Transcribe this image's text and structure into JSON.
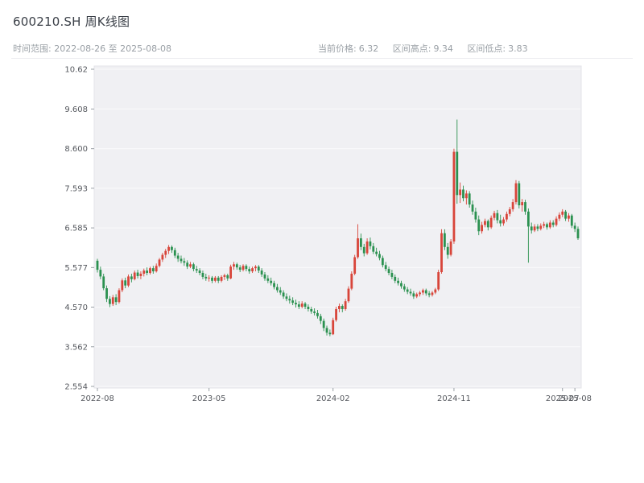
{
  "header": {
    "title": "600210.SH 周K线图",
    "time_range_text": "时间范围: 2022-08-26 至 2025-08-08",
    "stats": [
      {
        "label": "当前价格:",
        "value": "6.32"
      },
      {
        "label": "区间高点:",
        "value": "9.34"
      },
      {
        "label": "区间低点:",
        "value": "3.83"
      }
    ]
  },
  "chart_data": {
    "type": "candlestick",
    "title": "600210.SH 周K线图",
    "frequency": "weekly",
    "start_date": "2022-08-26",
    "end_date": "2025-08-08",
    "current_price": 6.32,
    "range_high": 9.34,
    "range_low": 3.83,
    "up_color": "#d8453a",
    "down_color": "#2b9150",
    "plot_bg": "#f0f0f3",
    "plot_border": "#e3e3e8",
    "grid_color": "#fafafb",
    "axis_text_color": "#55585e",
    "y_axis": {
      "range": [
        2.554,
        10.62
      ],
      "tick_values": [
        10.62,
        9.608,
        8.6,
        7.593,
        6.585,
        5.577,
        4.57,
        3.562,
        2.554
      ],
      "tick_labels": [
        "10.62",
        "9.608",
        "8.600",
        "7.593",
        "6.585",
        "5.577",
        "4.570",
        "3.562",
        "2.554"
      ]
    },
    "x_axis": {
      "tick_indices": [
        0,
        36,
        76,
        115,
        150,
        154
      ],
      "tick_labels": [
        "2022-08",
        "2023-05",
        "2024-02",
        "2024-11",
        "2025-07",
        "2025-08"
      ]
    },
    "candles": [
      [
        5.75,
        5.8,
        5.45,
        5.52
      ],
      [
        5.52,
        5.6,
        5.28,
        5.35
      ],
      [
        5.35,
        5.42,
        5.0,
        5.05
      ],
      [
        5.05,
        5.12,
        4.7,
        4.78
      ],
      [
        4.78,
        4.85,
        4.57,
        4.65
      ],
      [
        4.65,
        4.88,
        4.6,
        4.82
      ],
      [
        4.82,
        4.9,
        4.62,
        4.7
      ],
      [
        4.7,
        5.05,
        4.66,
        5.0
      ],
      [
        5.0,
        5.3,
        4.95,
        5.25
      ],
      [
        5.25,
        5.32,
        5.05,
        5.12
      ],
      [
        5.12,
        5.4,
        5.08,
        5.35
      ],
      [
        5.35,
        5.42,
        5.2,
        5.28
      ],
      [
        5.28,
        5.5,
        5.25,
        5.45
      ],
      [
        5.45,
        5.52,
        5.3,
        5.36
      ],
      [
        5.36,
        5.48,
        5.28,
        5.42
      ],
      [
        5.42,
        5.55,
        5.35,
        5.5
      ],
      [
        5.5,
        5.58,
        5.38,
        5.44
      ],
      [
        5.44,
        5.6,
        5.4,
        5.56
      ],
      [
        5.56,
        5.62,
        5.42,
        5.48
      ],
      [
        5.48,
        5.68,
        5.45,
        5.62
      ],
      [
        5.62,
        5.82,
        5.58,
        5.78
      ],
      [
        5.78,
        5.95,
        5.72,
        5.9
      ],
      [
        5.9,
        6.05,
        5.82,
        6.0
      ],
      [
        6.0,
        6.15,
        5.92,
        6.1
      ],
      [
        6.1,
        6.14,
        5.95,
        6.02
      ],
      [
        6.02,
        6.08,
        5.82,
        5.88
      ],
      [
        5.88,
        5.95,
        5.72,
        5.8
      ],
      [
        5.8,
        5.88,
        5.68,
        5.74
      ],
      [
        5.74,
        5.82,
        5.62,
        5.7
      ],
      [
        5.7,
        5.76,
        5.54,
        5.6
      ],
      [
        5.6,
        5.72,
        5.56,
        5.66
      ],
      [
        5.66,
        5.7,
        5.48,
        5.54
      ],
      [
        5.54,
        5.62,
        5.44,
        5.5
      ],
      [
        5.5,
        5.56,
        5.38,
        5.44
      ],
      [
        5.44,
        5.5,
        5.28,
        5.34
      ],
      [
        5.34,
        5.42,
        5.24,
        5.3
      ],
      [
        5.3,
        5.38,
        5.22,
        5.32
      ],
      [
        5.32,
        5.36,
        5.18,
        5.24
      ],
      [
        5.24,
        5.36,
        5.2,
        5.32
      ],
      [
        5.32,
        5.36,
        5.18,
        5.24
      ],
      [
        5.24,
        5.38,
        5.2,
        5.34
      ],
      [
        5.34,
        5.42,
        5.26,
        5.38
      ],
      [
        5.38,
        5.42,
        5.24,
        5.3
      ],
      [
        5.3,
        5.65,
        5.28,
        5.6
      ],
      [
        5.6,
        5.72,
        5.52,
        5.66
      ],
      [
        5.66,
        5.7,
        5.52,
        5.58
      ],
      [
        5.58,
        5.64,
        5.46,
        5.52
      ],
      [
        5.52,
        5.66,
        5.48,
        5.62
      ],
      [
        5.62,
        5.66,
        5.48,
        5.54
      ],
      [
        5.54,
        5.6,
        5.42,
        5.48
      ],
      [
        5.48,
        5.6,
        5.44,
        5.56
      ],
      [
        5.56,
        5.64,
        5.48,
        5.6
      ],
      [
        5.6,
        5.64,
        5.44,
        5.5
      ],
      [
        5.5,
        5.56,
        5.34,
        5.4
      ],
      [
        5.4,
        5.46,
        5.24,
        5.3
      ],
      [
        5.3,
        5.38,
        5.18,
        5.24
      ],
      [
        5.24,
        5.32,
        5.12,
        5.18
      ],
      [
        5.18,
        5.24,
        5.02,
        5.08
      ],
      [
        5.08,
        5.16,
        4.94,
        5.0
      ],
      [
        5.0,
        5.08,
        4.88,
        4.94
      ],
      [
        4.94,
        5.0,
        4.78,
        4.84
      ],
      [
        4.84,
        4.92,
        4.72,
        4.78
      ],
      [
        4.78,
        4.86,
        4.66,
        4.74
      ],
      [
        4.74,
        4.82,
        4.62,
        4.68
      ],
      [
        4.68,
        4.76,
        4.56,
        4.64
      ],
      [
        4.64,
        4.72,
        4.52,
        4.58
      ],
      [
        4.58,
        4.72,
        4.54,
        4.66
      ],
      [
        4.66,
        4.7,
        4.52,
        4.58
      ],
      [
        4.58,
        4.64,
        4.46,
        4.52
      ],
      [
        4.52,
        4.58,
        4.4,
        4.46
      ],
      [
        4.46,
        4.54,
        4.36,
        4.42
      ],
      [
        4.42,
        4.5,
        4.28,
        4.34
      ],
      [
        4.34,
        4.4,
        4.14,
        4.22
      ],
      [
        4.22,
        4.28,
        3.96,
        4.04
      ],
      [
        4.04,
        4.1,
        3.85,
        3.92
      ],
      [
        3.92,
        4.0,
        3.83,
        3.88
      ],
      [
        3.88,
        4.3,
        3.86,
        4.24
      ],
      [
        4.24,
        4.58,
        4.2,
        4.52
      ],
      [
        4.52,
        4.66,
        4.44,
        4.6
      ],
      [
        4.6,
        4.64,
        4.44,
        4.52
      ],
      [
        4.52,
        4.78,
        4.48,
        4.72
      ],
      [
        4.72,
        5.1,
        4.68,
        5.04
      ],
      [
        5.04,
        5.48,
        5.0,
        5.42
      ],
      [
        5.42,
        5.9,
        5.38,
        5.84
      ],
      [
        5.84,
        6.68,
        5.8,
        6.32
      ],
      [
        6.32,
        6.44,
        6.02,
        6.1
      ],
      [
        6.1,
        6.18,
        5.86,
        5.94
      ],
      [
        5.94,
        6.32,
        5.9,
        6.24
      ],
      [
        6.24,
        6.34,
        6.04,
        6.12
      ],
      [
        6.12,
        6.2,
        5.92,
        5.98
      ],
      [
        5.98,
        6.08,
        5.86,
        5.92
      ],
      [
        5.92,
        6.0,
        5.76,
        5.82
      ],
      [
        5.82,
        5.88,
        5.58,
        5.64
      ],
      [
        5.64,
        5.72,
        5.48,
        5.54
      ],
      [
        5.54,
        5.6,
        5.38,
        5.44
      ],
      [
        5.44,
        5.52,
        5.28,
        5.34
      ],
      [
        5.34,
        5.4,
        5.18,
        5.24
      ],
      [
        5.24,
        5.32,
        5.12,
        5.18
      ],
      [
        5.18,
        5.24,
        5.04,
        5.1
      ],
      [
        5.1,
        5.16,
        4.96,
        5.02
      ],
      [
        5.02,
        5.08,
        4.9,
        4.96
      ],
      [
        4.96,
        5.04,
        4.86,
        4.92
      ],
      [
        4.92,
        4.98,
        4.78,
        4.84
      ],
      [
        4.84,
        4.94,
        4.8,
        4.9
      ],
      [
        4.9,
        4.98,
        4.84,
        4.94
      ],
      [
        4.94,
        5.04,
        4.88,
        5.0
      ],
      [
        5.0,
        5.04,
        4.86,
        4.92
      ],
      [
        4.92,
        4.98,
        4.82,
        4.88
      ],
      [
        4.88,
        4.98,
        4.84,
        4.94
      ],
      [
        4.94,
        5.06,
        4.9,
        5.02
      ],
      [
        5.02,
        5.52,
        4.98,
        5.46
      ],
      [
        5.46,
        6.55,
        5.42,
        6.45
      ],
      [
        6.45,
        6.55,
        6.02,
        6.1
      ],
      [
        6.1,
        6.2,
        5.8,
        5.9
      ],
      [
        5.9,
        6.3,
        5.86,
        6.24
      ],
      [
        6.24,
        8.6,
        6.18,
        8.52
      ],
      [
        8.52,
        9.34,
        7.2,
        7.42
      ],
      [
        7.42,
        7.74,
        7.22,
        7.56
      ],
      [
        7.56,
        7.66,
        7.26,
        7.34
      ],
      [
        7.34,
        7.54,
        7.18,
        7.46
      ],
      [
        7.46,
        7.52,
        7.1,
        7.18
      ],
      [
        7.18,
        7.28,
        6.92,
        7.0
      ],
      [
        7.0,
        7.1,
        6.72,
        6.8
      ],
      [
        6.8,
        6.9,
        6.4,
        6.5
      ],
      [
        6.5,
        6.74,
        6.44,
        6.66
      ],
      [
        6.66,
        6.82,
        6.6,
        6.76
      ],
      [
        6.76,
        6.8,
        6.52,
        6.6
      ],
      [
        6.6,
        6.9,
        6.56,
        6.84
      ],
      [
        6.84,
        7.02,
        6.78,
        6.96
      ],
      [
        6.96,
        7.04,
        6.7,
        6.78
      ],
      [
        6.78,
        6.92,
        6.62,
        6.7
      ],
      [
        6.7,
        6.86,
        6.64,
        6.8
      ],
      [
        6.8,
        7.0,
        6.74,
        6.94
      ],
      [
        6.94,
        7.12,
        6.88,
        7.06
      ],
      [
        7.06,
        7.32,
        7.0,
        7.24
      ],
      [
        7.24,
        7.8,
        7.18,
        7.72
      ],
      [
        7.72,
        7.78,
        7.08,
        7.16
      ],
      [
        7.16,
        7.32,
        7.0,
        7.24
      ],
      [
        7.24,
        7.3,
        6.92,
        7.0
      ],
      [
        7.0,
        7.08,
        5.7,
        6.62
      ],
      [
        6.62,
        6.72,
        6.44,
        6.52
      ],
      [
        6.52,
        6.68,
        6.48,
        6.62
      ],
      [
        6.62,
        6.68,
        6.5,
        6.56
      ],
      [
        6.56,
        6.7,
        6.52,
        6.64
      ],
      [
        6.64,
        6.74,
        6.58,
        6.68
      ],
      [
        6.68,
        6.72,
        6.54,
        6.6
      ],
      [
        6.6,
        6.78,
        6.56,
        6.72
      ],
      [
        6.72,
        6.78,
        6.6,
        6.66
      ],
      [
        6.66,
        6.88,
        6.62,
        6.82
      ],
      [
        6.82,
        6.98,
        6.76,
        6.92
      ],
      [
        6.92,
        7.06,
        6.86,
        7.0
      ],
      [
        7.0,
        7.04,
        6.76,
        6.82
      ],
      [
        6.82,
        6.96,
        6.74,
        6.9
      ],
      [
        6.9,
        6.94,
        6.58,
        6.64
      ],
      [
        6.64,
        6.72,
        6.48,
        6.56
      ],
      [
        6.56,
        6.62,
        6.28,
        6.32
      ]
    ]
  }
}
